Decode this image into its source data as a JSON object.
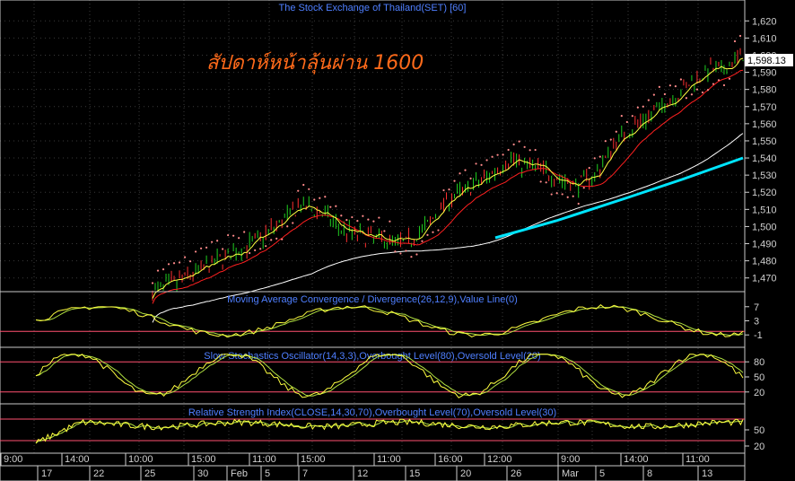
{
  "chart_data": [
    {
      "type": "line",
      "title": "The Stock Exchange of Thailand(SET) [60]",
      "annotation": "สัปดาห์หน้าลุ้นผ่าน 1600",
      "last_value_label": "1,598.13",
      "ylim": [
        1462,
        1628
      ],
      "y_ticks": [
        "1,470",
        "1,480",
        "1,490",
        "1,500",
        "1,510",
        "1,520",
        "1,530",
        "1,540",
        "1,550",
        "1,560",
        "1,570",
        "1,580",
        "1,590",
        "1,600",
        "1,610",
        "1,620"
      ],
      "y_tick_values": [
        1470,
        1480,
        1490,
        1500,
        1510,
        1520,
        1530,
        1540,
        1550,
        1560,
        1570,
        1580,
        1590,
        1600,
        1610,
        1620
      ],
      "x_time_labels": [
        "9:00",
        "14:00",
        "10:00",
        "15:00",
        "11:00",
        "15:00",
        "11:00",
        "16:00",
        "12:00",
        "9:00",
        "14:00",
        "11:00"
      ],
      "x_date_labels": [
        "17",
        "22",
        "25",
        "30",
        "Feb",
        "5",
        "7",
        "12",
        "15",
        "20",
        "26",
        "Mar",
        "5",
        "8",
        "13"
      ],
      "price_points": [
        [
          0.0,
          1462
        ],
        [
          0.05,
          1468
        ],
        [
          0.1,
          1476
        ],
        [
          0.15,
          1484
        ],
        [
          0.2,
          1492
        ],
        [
          0.25,
          1504
        ],
        [
          0.28,
          1512
        ],
        [
          0.32,
          1508
        ],
        [
          0.36,
          1498
        ],
        [
          0.4,
          1494
        ],
        [
          0.44,
          1492
        ],
        [
          0.48,
          1490
        ],
        [
          0.52,
          1500
        ],
        [
          0.56,
          1516
        ],
        [
          0.6,
          1522
        ],
        [
          0.64,
          1530
        ],
        [
          0.68,
          1540
        ],
        [
          0.7,
          1536
        ],
        [
          0.73,
          1534
        ],
        [
          0.76,
          1530
        ],
        [
          0.8,
          1524
        ],
        [
          0.84,
          1530
        ],
        [
          0.88,
          1550
        ],
        [
          0.92,
          1560
        ],
        [
          0.95,
          1566
        ],
        [
          0.98,
          1574
        ],
        [
          1.0,
          1578
        ],
        [
          1.03,
          1586
        ],
        [
          1.06,
          1592
        ],
        [
          1.08,
          1590
        ],
        [
          1.1,
          1596
        ],
        [
          1.12,
          1600
        ]
      ],
      "series": [
        {
          "name": "",
          "color": "#ffffff",
          "values_note": "long moving average"
        },
        {
          "name": "",
          "color": "#ff2020",
          "values_note": "short moving average"
        },
        {
          "name": "",
          "color": "#ffff40",
          "values_note": "fast moving average"
        },
        {
          "name": "",
          "color": "#ff8a8a",
          "values_note": "parabolic SAR dots"
        },
        {
          "name": "",
          "color": "#00e5ff",
          "values_note": "trend line"
        }
      ],
      "grid": true
    },
    {
      "type": "line",
      "title": "Moving Average Convergence / Divergence(26,12,9),Value Line(0)",
      "y_ticks": [
        "7",
        "3",
        "-1"
      ],
      "y_tick_values": [
        7,
        3,
        -1
      ],
      "ylim": [
        -4,
        10
      ],
      "zero_line": 0
    },
    {
      "type": "line",
      "title": "Slow Stochastics Oscillator(14,3,3),Overbought Level(80),Oversold Level(20)",
      "y_ticks": [
        "80",
        "50",
        "20"
      ],
      "y_tick_values": [
        80,
        50,
        20
      ],
      "ylim": [
        0,
        100
      ],
      "overbought": 80,
      "oversold": 20
    },
    {
      "type": "line",
      "title": "Relative Strength Index(CLOSE,14,30,70),Overbought Level(70),Oversold Level(30)",
      "y_ticks": [
        "50",
        "20"
      ],
      "y_tick_values": [
        50,
        20
      ],
      "ylim": [
        10,
        90
      ],
      "overbought": 70,
      "oversold": 30
    }
  ],
  "colors": {
    "background": "#000000",
    "grid": "#3a3a3a",
    "axis_text": "#d0d0d0",
    "title": "#4f7fff",
    "annotation": "#ff6a1a",
    "indicator_main": "#ffff40",
    "indicator_signal": "#b0e040",
    "level_line": "#ff5070",
    "panel_border": "#c8c8c8"
  }
}
